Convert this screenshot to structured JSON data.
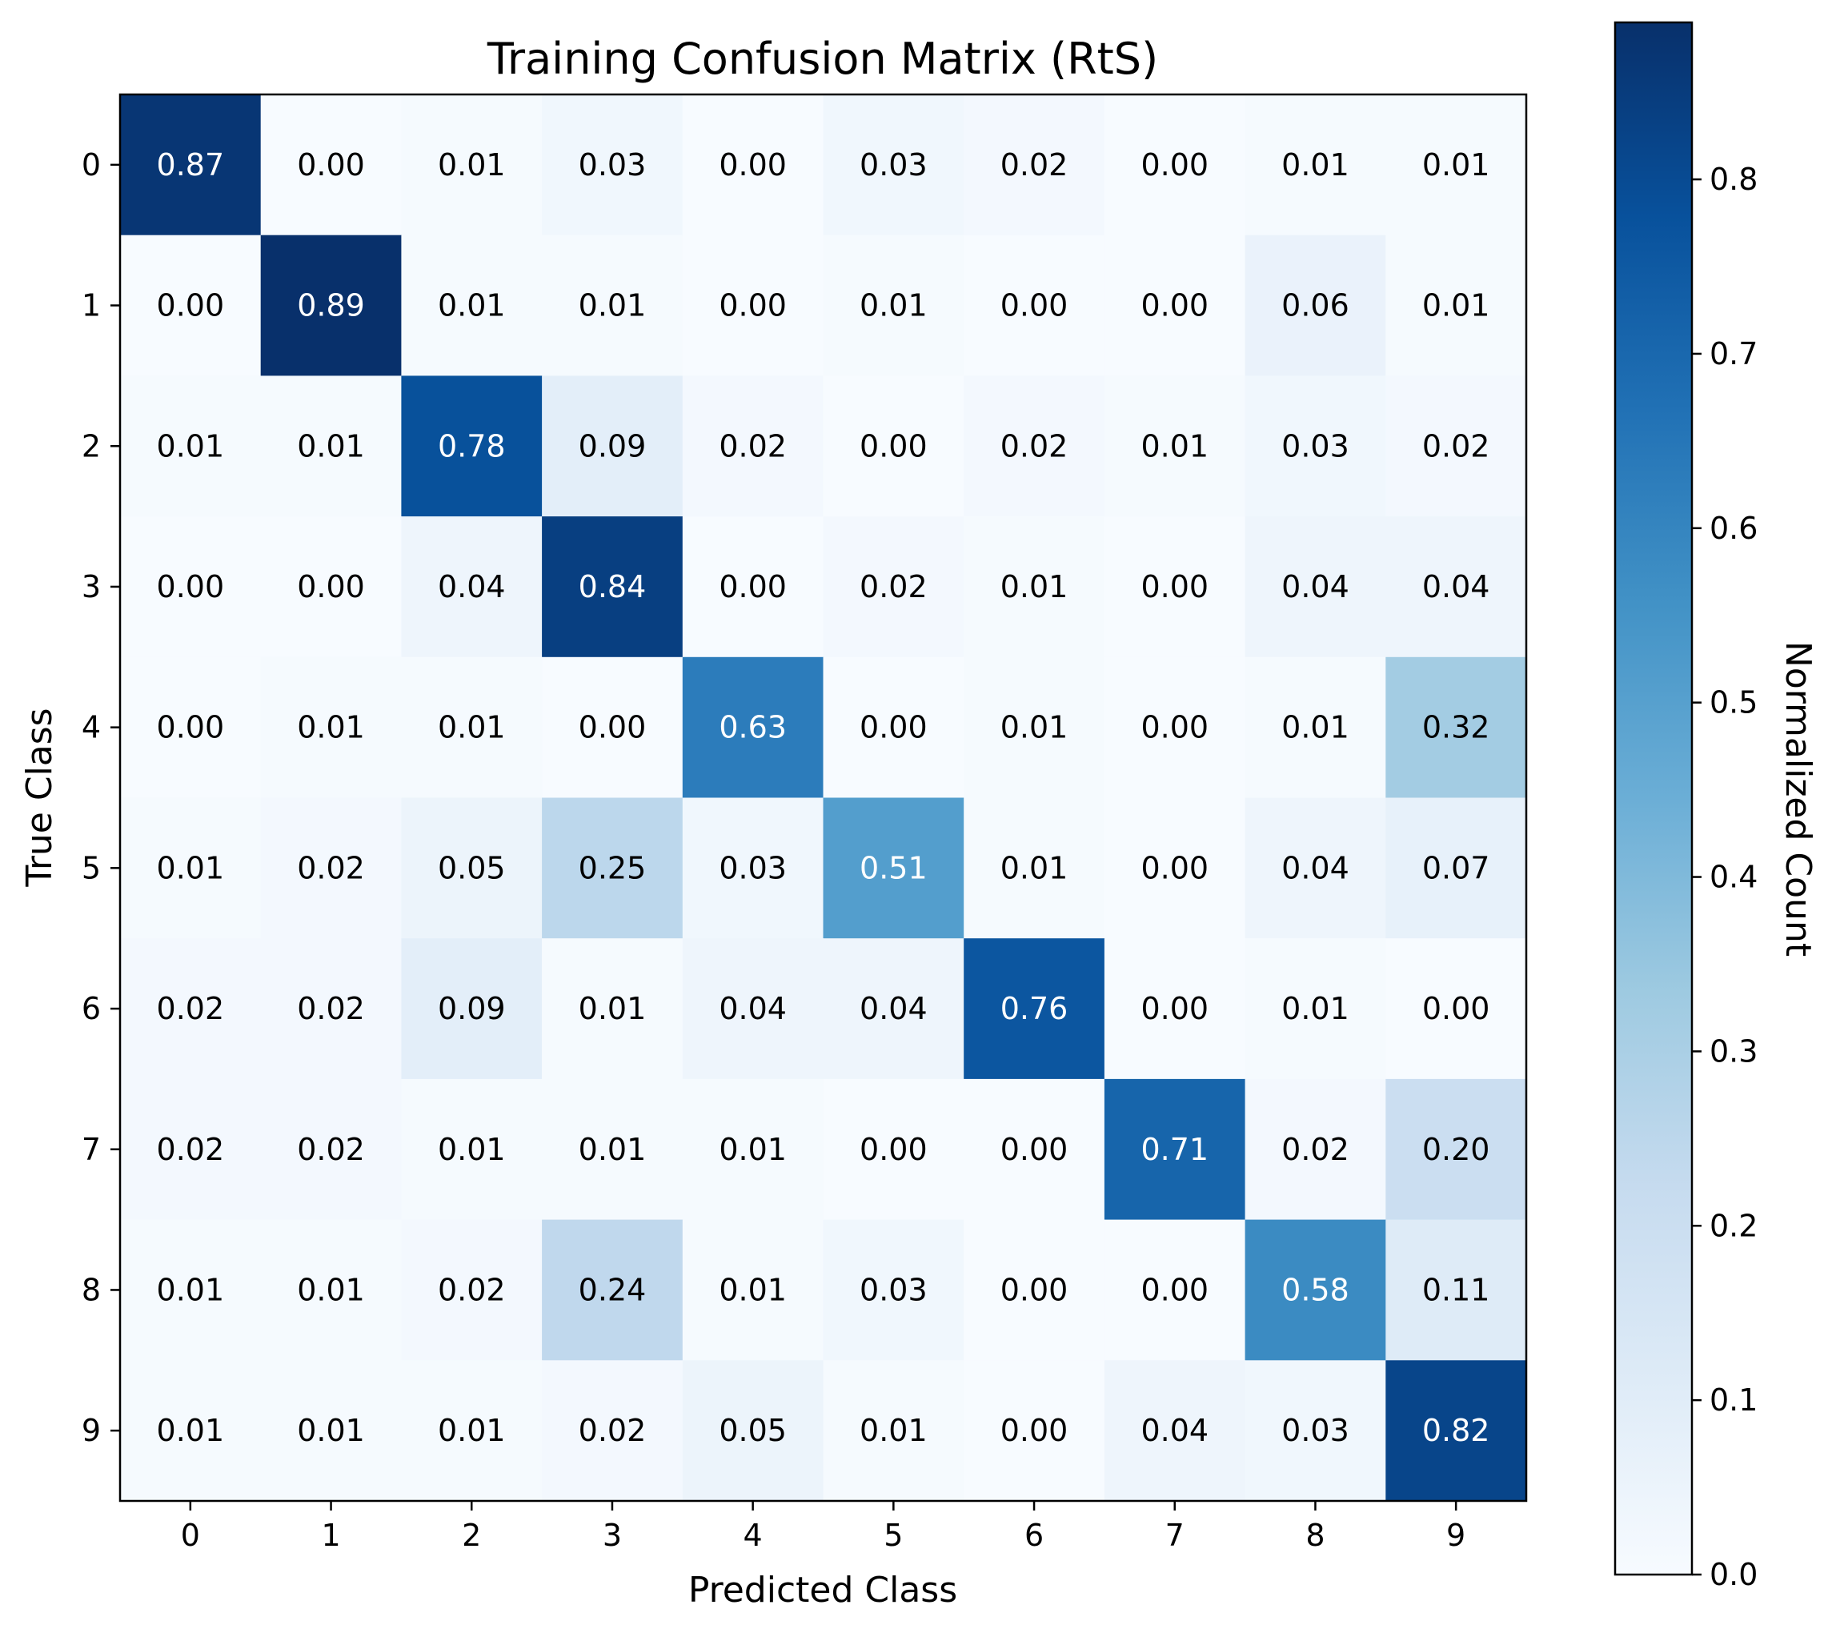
{
  "chart_data": {
    "type": "heatmap",
    "title": "Training Confusion Matrix (RtS)",
    "xlabel": "Predicted Class",
    "ylabel": "True Class",
    "x_categories": [
      "0",
      "1",
      "2",
      "3",
      "4",
      "5",
      "6",
      "7",
      "8",
      "9"
    ],
    "y_categories": [
      "0",
      "1",
      "2",
      "3",
      "4",
      "5",
      "6",
      "7",
      "8",
      "9"
    ],
    "values": [
      [
        0.87,
        0.0,
        0.01,
        0.03,
        0.0,
        0.03,
        0.02,
        0.0,
        0.01,
        0.01
      ],
      [
        0.0,
        0.89,
        0.01,
        0.01,
        0.0,
        0.01,
        0.0,
        0.0,
        0.06,
        0.01
      ],
      [
        0.01,
        0.01,
        0.78,
        0.09,
        0.02,
        0.0,
        0.02,
        0.01,
        0.03,
        0.02
      ],
      [
        0.0,
        0.0,
        0.04,
        0.84,
        0.0,
        0.02,
        0.01,
        0.0,
        0.04,
        0.04
      ],
      [
        0.0,
        0.01,
        0.01,
        0.0,
        0.63,
        0.0,
        0.01,
        0.0,
        0.01,
        0.32
      ],
      [
        0.01,
        0.02,
        0.05,
        0.25,
        0.03,
        0.51,
        0.01,
        0.0,
        0.04,
        0.07
      ],
      [
        0.02,
        0.02,
        0.09,
        0.01,
        0.04,
        0.04,
        0.76,
        0.0,
        0.01,
        0.0
      ],
      [
        0.02,
        0.02,
        0.01,
        0.01,
        0.01,
        0.0,
        0.0,
        0.71,
        0.02,
        0.2
      ],
      [
        0.01,
        0.01,
        0.02,
        0.24,
        0.01,
        0.03,
        0.0,
        0.0,
        0.58,
        0.11
      ],
      [
        0.01,
        0.01,
        0.01,
        0.02,
        0.05,
        0.01,
        0.0,
        0.04,
        0.03,
        0.82
      ]
    ],
    "colormap": "Blues",
    "colorbar": {
      "label": "Normalized Count",
      "range": [
        0.0,
        0.89
      ],
      "ticks": [
        0.0,
        0.1,
        0.2,
        0.3,
        0.4,
        0.5,
        0.6,
        0.7,
        0.8
      ],
      "tick_labels": [
        "0.0",
        "0.1",
        "0.2",
        "0.3",
        "0.4",
        "0.5",
        "0.6",
        "0.7",
        "0.8"
      ]
    }
  }
}
